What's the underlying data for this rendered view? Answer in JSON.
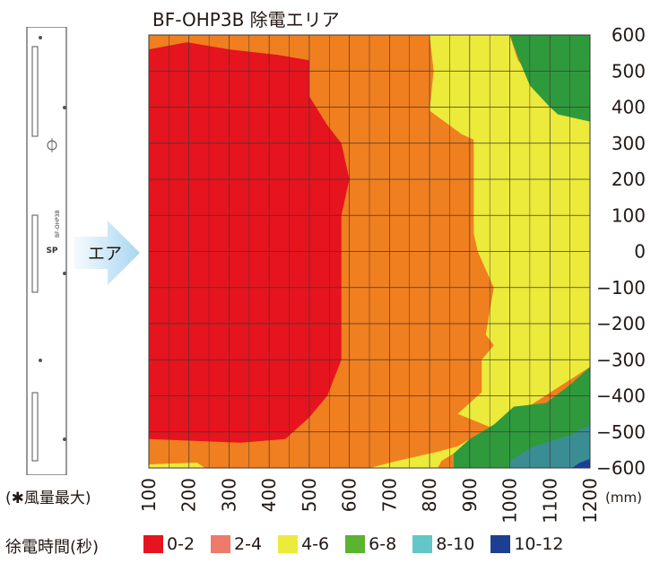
{
  "title": "BF-OHP3B 除電エリア",
  "note": "(✱風量最大)",
  "air_label": "エア",
  "unit_label": "(mm)",
  "legend_title": "徐電時間(秒)",
  "device": {
    "markings": [
      "SP",
      "BF-OHP3B"
    ]
  },
  "colors": {
    "band_0_2": "#e6141e",
    "band_2_4": "#f07f1f",
    "band_4_6": "#ecea3a",
    "band_6_8": "#2f9a3c",
    "band_8_10": "#3b8d94",
    "band_10_12": "#1d3f93",
    "legend_2_4": "#ee7a6c",
    "legend_6_8": "#5ab432",
    "legend_8_10": "#63c6c8"
  },
  "legend": [
    {
      "label": "0-2",
      "color": "#e6141e"
    },
    {
      "label": "2-4",
      "color": "#ee7a6c"
    },
    {
      "label": "4-6",
      "color": "#ecea3a"
    },
    {
      "label": "6-8",
      "color": "#5ab432"
    },
    {
      "label": "8-10",
      "color": "#63c6c8"
    },
    {
      "label": "10-12",
      "color": "#1d3f93"
    }
  ],
  "chart_data": {
    "type": "heatmap",
    "title": "BF-OHP3B 除電エリア",
    "xlabel": "",
    "ylabel": "",
    "x_unit": "(mm)",
    "xlim": [
      100,
      1200
    ],
    "ylim": [
      -600,
      600
    ],
    "grid": true,
    "x_ticks": [
      100,
      200,
      300,
      400,
      500,
      600,
      700,
      800,
      900,
      1000,
      1100,
      1200
    ],
    "y_ticks": [
      600,
      500,
      400,
      300,
      200,
      100,
      0,
      -100,
      -200,
      -300,
      -400,
      -500,
      -600
    ],
    "y_tick_labels": [
      "600",
      "500",
      "400",
      "300",
      "200",
      "100",
      "0",
      "−100",
      "−200",
      "−300",
      "−400",
      "−500",
      "−600"
    ],
    "background_band": "2-4",
    "regions": [
      {
        "band": "0-2",
        "color": "#e6141e",
        "points": [
          [
            100,
            560
          ],
          [
            195,
            580
          ],
          [
            300,
            560
          ],
          [
            420,
            545
          ],
          [
            500,
            530
          ],
          [
            500,
            430
          ],
          [
            545,
            350
          ],
          [
            580,
            300
          ],
          [
            600,
            200
          ],
          [
            580,
            100
          ],
          [
            580,
            0
          ],
          [
            580,
            -100
          ],
          [
            580,
            -200
          ],
          [
            580,
            -300
          ],
          [
            545,
            -400
          ],
          [
            500,
            -460
          ],
          [
            440,
            -520
          ],
          [
            330,
            -530
          ],
          [
            100,
            -520
          ]
        ]
      },
      {
        "band": "4-6",
        "color": "#ecea3a",
        "points": [
          [
            800,
            600
          ],
          [
            1000,
            600
          ],
          [
            1020,
            530
          ],
          [
            1050,
            490
          ],
          [
            1080,
            430
          ],
          [
            1150,
            400
          ],
          [
            1200,
            380
          ],
          [
            1200,
            -320
          ],
          [
            1130,
            -370
          ],
          [
            1060,
            -420
          ],
          [
            960,
            -480
          ],
          [
            870,
            -540
          ],
          [
            820,
            -555
          ],
          [
            720,
            -580
          ],
          [
            650,
            -600
          ],
          [
            820,
            -600
          ],
          [
            830,
            -580
          ],
          [
            860,
            -560
          ],
          [
            940,
            -540
          ],
          [
            1000,
            -520
          ],
          [
            980,
            -500
          ],
          [
            870,
            -450
          ],
          [
            930,
            -390
          ],
          [
            930,
            -300
          ],
          [
            960,
            -260
          ],
          [
            940,
            -230
          ],
          [
            960,
            -100
          ],
          [
            940,
            -50
          ],
          [
            920,
            0
          ],
          [
            910,
            50
          ],
          [
            910,
            100
          ],
          [
            910,
            200
          ],
          [
            910,
            310
          ],
          [
            880,
            325
          ],
          [
            800,
            390
          ],
          [
            810,
            500
          ],
          [
            800,
            600
          ]
        ]
      },
      {
        "band": "6-8",
        "color": "#2f9a3c",
        "points": [
          [
            1000,
            600
          ],
          [
            1200,
            600
          ],
          [
            1200,
            360
          ],
          [
            1120,
            380
          ],
          [
            1100,
            400
          ],
          [
            1050,
            460
          ],
          [
            1020,
            540
          ]
        ]
      },
      {
        "band": "6-8",
        "color": "#2f9a3c",
        "points": [
          [
            860,
            -600
          ],
          [
            1200,
            -600
          ],
          [
            1200,
            -320
          ],
          [
            1150,
            -370
          ],
          [
            1090,
            -420
          ],
          [
            1010,
            -430
          ],
          [
            960,
            -480
          ],
          [
            900,
            -520
          ],
          [
            860,
            -560
          ]
        ]
      },
      {
        "band": "8-10",
        "color": "#3b8d94",
        "points": [
          [
            1000,
            -600
          ],
          [
            1200,
            -600
          ],
          [
            1200,
            -480
          ],
          [
            1150,
            -510
          ],
          [
            1060,
            -540
          ],
          [
            1000,
            -580
          ]
        ]
      },
      {
        "band": "10-12",
        "color": "#1d3f93",
        "points": [
          [
            1155,
            -600
          ],
          [
            1200,
            -600
          ],
          [
            1200,
            -575
          ],
          [
            1175,
            -585
          ]
        ]
      },
      {
        "band": "4-6",
        "color": "#ecea3a",
        "points": [
          [
            100,
            -590
          ],
          [
            220,
            -585
          ],
          [
            240,
            -600
          ],
          [
            100,
            -600
          ]
        ]
      }
    ]
  }
}
